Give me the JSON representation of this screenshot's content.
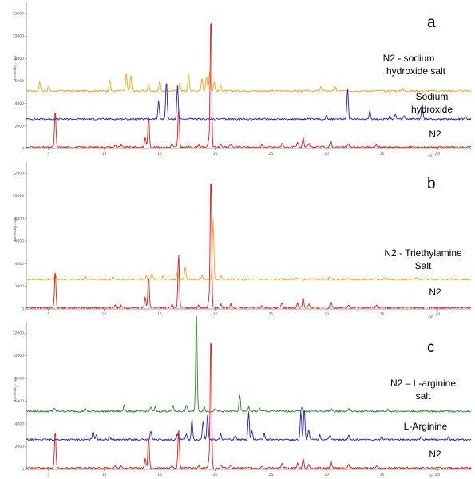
{
  "chart_data": [
    {
      "type": "line",
      "panel_label": "a",
      "xlabel": "2θ, °",
      "ylabel": "Intensity, cps",
      "xlim": [
        3,
        43
      ],
      "ylim": [
        0,
        13000
      ],
      "x_ticks": [
        "5",
        "10",
        "15",
        "20",
        "25",
        "30",
        "35",
        "40"
      ],
      "y_ticks": [
        "0",
        "2000",
        "4000",
        "6000",
        "8000",
        "10000",
        "12000"
      ],
      "colors": {
        "N2 - sodium hydroxide salt": "#f2a51a",
        "Sodium hydroxide": "#1d22c9",
        "N2": "#e01a1a"
      },
      "series": [
        {
          "name": "N2 - sodium hydroxide salt",
          "color": "#f2a51a",
          "offset": 5000,
          "peaks": [
            [
              4.2,
              800
            ],
            [
              5.0,
              400
            ],
            [
              10.5,
              1000
            ],
            [
              12.0,
              1600
            ],
            [
              12.4,
              1400
            ],
            [
              14.0,
              600
            ],
            [
              15.0,
              900
            ],
            [
              16.8,
              700
            ],
            [
              17.6,
              1600
            ],
            [
              18.8,
              1200
            ],
            [
              19.2,
              1400
            ],
            [
              19.5,
              1900
            ],
            [
              19.9,
              800
            ],
            [
              20.5,
              500
            ],
            [
              29.5,
              400
            ],
            [
              30.8,
              300
            ],
            [
              36.8,
              300
            ]
          ]
        },
        {
          "name": "Sodium hydroxide",
          "color": "#1d22c9",
          "offset": 2500,
          "peaks": [
            [
              14.9,
              1600
            ],
            [
              15.6,
              3500
            ],
            [
              16.6,
              3000
            ],
            [
              30.0,
              400
            ],
            [
              31.9,
              2800
            ],
            [
              33.9,
              800
            ],
            [
              35.7,
              300
            ],
            [
              36.2,
              400
            ],
            [
              37.0,
              300
            ],
            [
              38.6,
              1500
            ],
            [
              42.5,
              200
            ]
          ]
        },
        {
          "name": "N2",
          "color": "#e01a1a",
          "offset": 0,
          "peaks": [
            [
              5.6,
              3300
            ],
            [
              11.0,
              200
            ],
            [
              11.5,
              250
            ],
            [
              13.7,
              900
            ],
            [
              14.0,
              2800
            ],
            [
              16.1,
              250
            ],
            [
              16.7,
              3500
            ],
            [
              18.5,
              250
            ],
            [
              19.4,
              600
            ],
            [
              19.6,
              12100
            ],
            [
              20.5,
              300
            ],
            [
              21.4,
              300
            ],
            [
              24.2,
              200
            ],
            [
              26.0,
              400
            ],
            [
              27.4,
              400
            ],
            [
              27.9,
              900
            ],
            [
              28.4,
              300
            ],
            [
              30.4,
              600
            ],
            [
              32.0,
              300
            ],
            [
              34.5,
              200
            ]
          ]
        }
      ]
    },
    {
      "type": "line",
      "panel_label": "b",
      "xlabel": "2θ, °",
      "ylabel": "Intensity, cps",
      "xlim": [
        3,
        43
      ],
      "ylim": [
        0,
        13000
      ],
      "x_ticks": [
        "5",
        "10",
        "15",
        "20",
        "25",
        "30",
        "35",
        "40"
      ],
      "y_ticks": [
        "0",
        "2000",
        "4000",
        "6000",
        "8000",
        "10000",
        "12000"
      ],
      "colors": {
        "N2 - Triethylamine Salt": "#f2a51a",
        "N2": "#e01a1a"
      },
      "series": [
        {
          "name": "N2 - Triethylamine Salt",
          "color": "#f2a51a",
          "offset": 2500,
          "peaks": [
            [
              5.6,
              500
            ],
            [
              8.3,
              300
            ],
            [
              10.8,
              200
            ],
            [
              13.8,
              300
            ],
            [
              14.3,
              500
            ],
            [
              15.3,
              300
            ],
            [
              16.6,
              600
            ],
            [
              17.3,
              1100
            ],
            [
              18.8,
              400
            ],
            [
              19.8,
              5300
            ],
            [
              20.5,
              300
            ],
            [
              27.3,
              200
            ],
            [
              30.3,
              200
            ],
            [
              35.2,
              150
            ],
            [
              38.1,
              150
            ]
          ]
        },
        {
          "name": "N2",
          "color": "#e01a1a",
          "offset": 0,
          "peaks": [
            [
              5.6,
              3300
            ],
            [
              11.0,
              200
            ],
            [
              11.5,
              250
            ],
            [
              13.7,
              900
            ],
            [
              14.0,
              2800
            ],
            [
              16.1,
              250
            ],
            [
              16.7,
              4800
            ],
            [
              18.5,
              250
            ],
            [
              19.4,
              600
            ],
            [
              19.6,
              12100
            ],
            [
              20.5,
              300
            ],
            [
              21.4,
              300
            ],
            [
              24.2,
              200
            ],
            [
              26.0,
              400
            ],
            [
              27.4,
              400
            ],
            [
              27.9,
              900
            ],
            [
              28.4,
              300
            ],
            [
              30.4,
              600
            ],
            [
              32.0,
              300
            ],
            [
              34.5,
              200
            ]
          ]
        }
      ]
    },
    {
      "type": "line",
      "panel_label": "c",
      "xlabel": "2θ, °",
      "ylabel": "Intensity, cps",
      "xlim": [
        3,
        43
      ],
      "ylim": [
        0,
        13000
      ],
      "x_ticks": [
        "5",
        "10",
        "15",
        "20",
        "25",
        "30",
        "35",
        "40"
      ],
      "y_ticks": [
        "0",
        "2000",
        "4000",
        "6000",
        "8000",
        "10000",
        "12000"
      ],
      "colors": {
        "N2 – L-arginine salt": "#1f8a1f",
        "L-Arginine": "#1d22c9",
        "N2": "#e01a1a"
      },
      "series": [
        {
          "name": "N2 – L-arginine salt",
          "color": "#1f8a1f",
          "offset": 5000,
          "peaks": [
            [
              5.5,
              300
            ],
            [
              8.3,
              300
            ],
            [
              11.8,
              600
            ],
            [
              14.2,
              400
            ],
            [
              14.6,
              350
            ],
            [
              16.2,
              500
            ],
            [
              17.4,
              600
            ],
            [
              18.3,
              8600
            ],
            [
              19.0,
              400
            ],
            [
              20.0,
              300
            ],
            [
              22.2,
              1400
            ],
            [
              23.0,
              400
            ],
            [
              24.0,
              300
            ],
            [
              27.8,
              300
            ],
            [
              30.4,
              300
            ],
            [
              32.0,
              250
            ],
            [
              35.5,
              200
            ]
          ]
        },
        {
          "name": "L-Arginine",
          "color": "#1d22c9",
          "offset": 2500,
          "peaks": [
            [
              9.0,
              800
            ],
            [
              9.3,
              500
            ],
            [
              10.5,
              300
            ],
            [
              14.2,
              800
            ],
            [
              16.6,
              500
            ],
            [
              17.4,
              500
            ],
            [
              17.9,
              1800
            ],
            [
              18.9,
              1700
            ],
            [
              19.3,
              2200
            ],
            [
              20.5,
              500
            ],
            [
              21.8,
              400
            ],
            [
              23.0,
              2400
            ],
            [
              23.3,
              800
            ],
            [
              24.4,
              500
            ],
            [
              27.7,
              2500
            ],
            [
              28.0,
              2800
            ],
            [
              28.4,
              800
            ],
            [
              29.4,
              400
            ],
            [
              30.3,
              300
            ],
            [
              32.0,
              400
            ],
            [
              35.0,
              300
            ],
            [
              38.5,
              300
            ],
            [
              41.0,
              250
            ]
          ]
        },
        {
          "name": "N2",
          "color": "#e01a1a",
          "offset": 0,
          "peaks": [
            [
              5.6,
              3300
            ],
            [
              11.0,
              200
            ],
            [
              11.5,
              250
            ],
            [
              13.7,
              900
            ],
            [
              14.0,
              2800
            ],
            [
              16.1,
              250
            ],
            [
              16.7,
              3500
            ],
            [
              18.5,
              250
            ],
            [
              19.4,
              600
            ],
            [
              19.6,
              12100
            ],
            [
              20.5,
              300
            ],
            [
              21.4,
              300
            ],
            [
              24.2,
              200
            ],
            [
              26.0,
              400
            ],
            [
              27.4,
              400
            ],
            [
              27.9,
              900
            ],
            [
              28.4,
              300
            ],
            [
              30.4,
              600
            ],
            [
              32.0,
              300
            ],
            [
              34.5,
              200
            ]
          ]
        }
      ]
    }
  ],
  "labels": {
    "a": {
      "letter": "a",
      "trace_top_line1": "N2 - sodium",
      "trace_top_line2": "hydroxide salt",
      "trace_mid_line1": "Sodium",
      "trace_mid_line2": "hydroxide",
      "trace_bottom": "N2"
    },
    "b": {
      "letter": "b",
      "trace_top_line1": "N2 - Triethylamine",
      "trace_top_line2": "Salt",
      "trace_bottom": "N2"
    },
    "c": {
      "letter": "c",
      "trace_top": "N2 – L-arginine",
      "trace_top_line2": "salt",
      "trace_mid": "L-Arginine",
      "trace_bottom": "N2"
    }
  }
}
